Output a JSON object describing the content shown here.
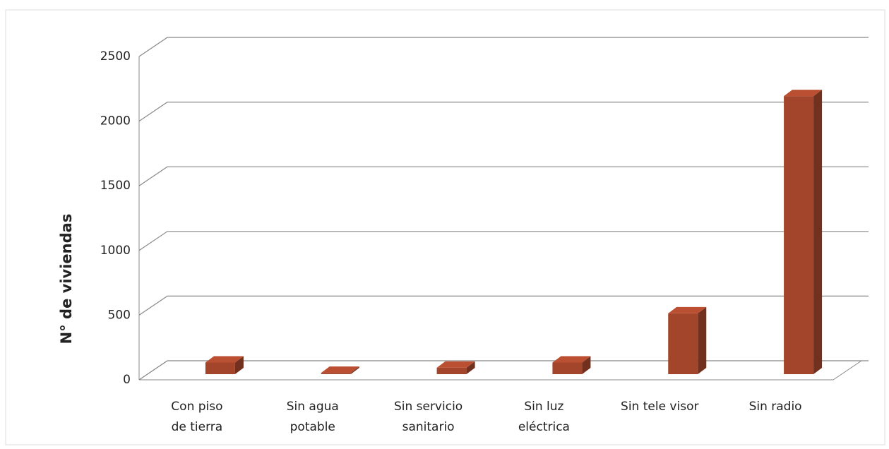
{
  "chart_data": {
    "type": "bar3d",
    "y_label": "N° de viviendas",
    "categories": [
      "Con piso de tierra",
      "Sin agua potable",
      "Sin servicio sanitario",
      "Sin luz eléctrica",
      "Sin tele visor",
      "Sin radio"
    ],
    "values": [
      90,
      10,
      50,
      90,
      470,
      2150
    ],
    "color": "#a3452b",
    "ylim": [
      0,
      2500
    ],
    "yticks": [
      0,
      500,
      1000,
      1500,
      2000,
      2500
    ],
    "grid": true
  }
}
